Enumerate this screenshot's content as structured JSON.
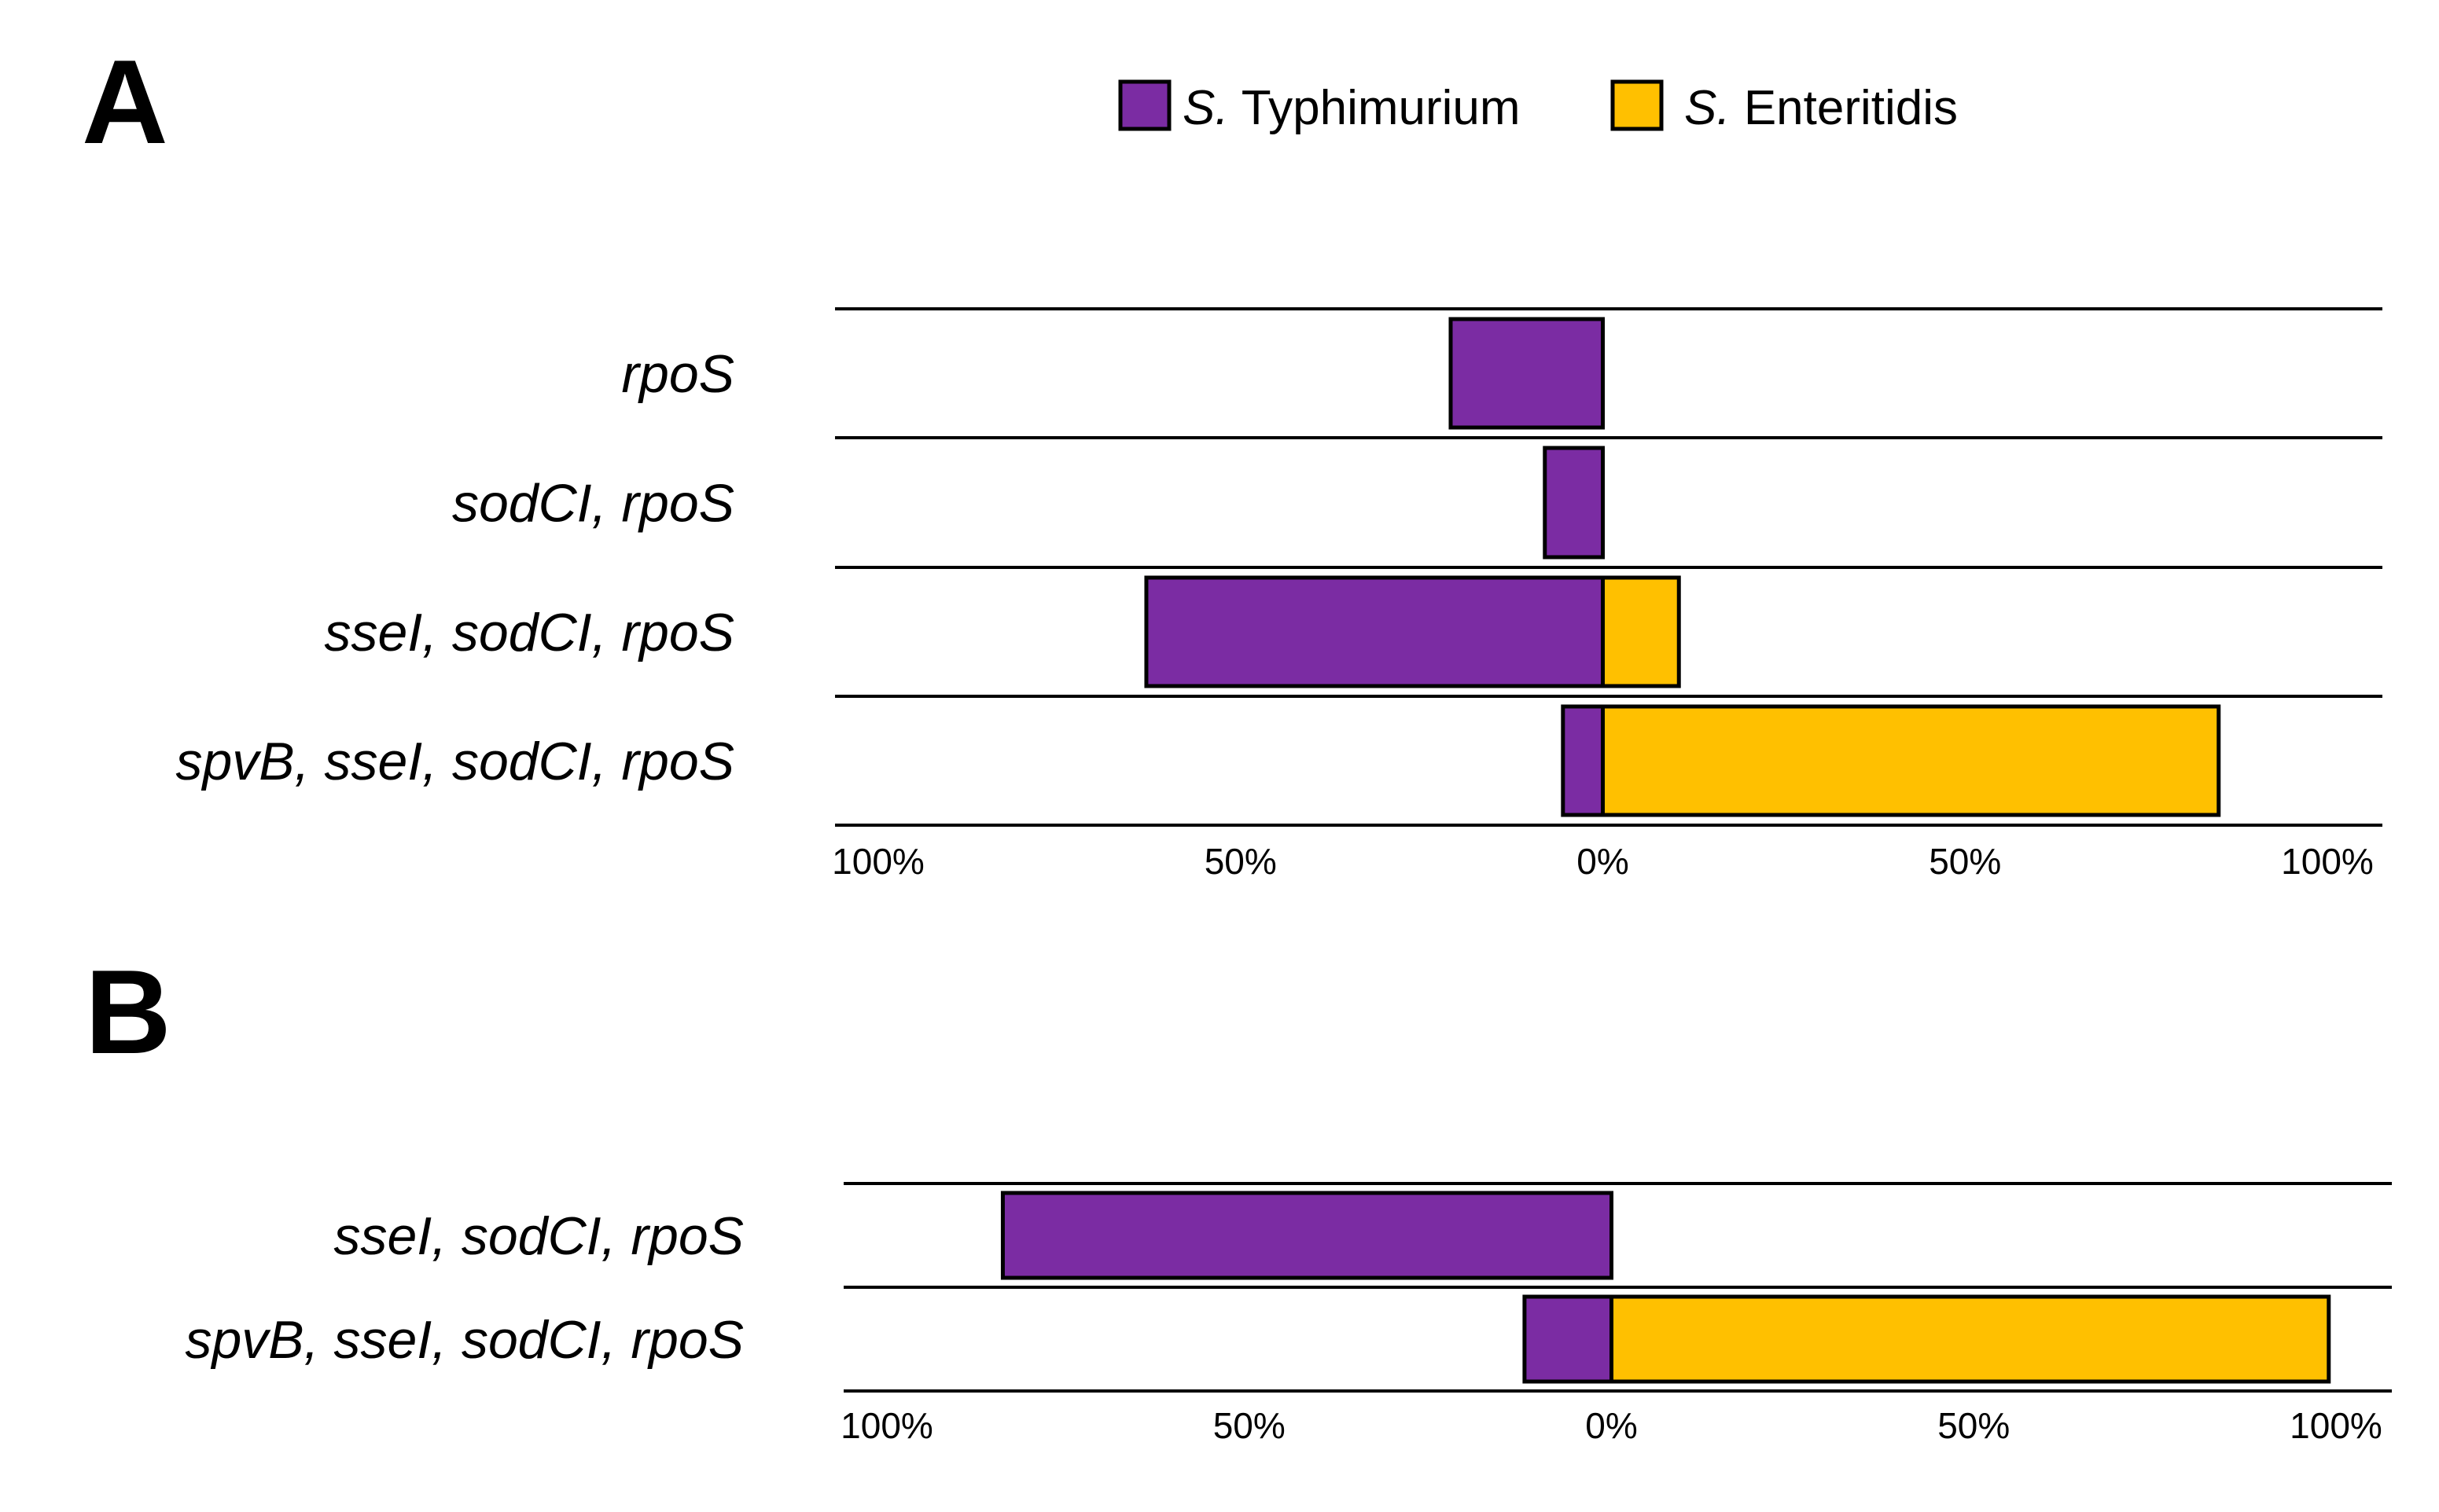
{
  "panels": {
    "a": {
      "label": "A"
    },
    "b": {
      "label": "B"
    }
  },
  "legend": {
    "items": [
      {
        "prefix": "S.",
        "name": " Typhimurium",
        "color": "#7B2CA3"
      },
      {
        "prefix": "S.",
        "name": " Enteritidis",
        "color": "#FFC000"
      }
    ]
  },
  "chart_data": [
    {
      "type": "bar",
      "orientation": "horizontal-diverging",
      "panel": "A",
      "categories": [
        "rpoS",
        "sodCI, rpoS",
        "sseI, sodCI, rpoS",
        "spvB, sseI, sodCI, rpoS"
      ],
      "series": [
        {
          "name": "S. Typhimurium",
          "direction": "left",
          "color": "#7B2CA3",
          "values": [
            21,
            8,
            63,
            5.5
          ]
        },
        {
          "name": "S. Enteritidis",
          "direction": "right",
          "color": "#FFC000",
          "values": [
            0,
            0,
            10.5,
            85
          ]
        }
      ],
      "xlim": [
        -100,
        100
      ],
      "ticks": [
        "100%",
        "50%",
        "0%",
        "50%",
        "100%"
      ],
      "xlabel": "",
      "ylabel": ""
    },
    {
      "type": "bar",
      "orientation": "horizontal-diverging",
      "panel": "B",
      "categories": [
        "sseI, sodCI, rpoS",
        "spvB, sseI, sodCI, rpoS"
      ],
      "series": [
        {
          "name": "S. Typhimurium",
          "direction": "left",
          "color": "#7B2CA3",
          "values": [
            84,
            12
          ]
        },
        {
          "name": "S. Enteritidis",
          "direction": "right",
          "color": "#FFC000",
          "values": [
            0,
            99
          ]
        }
      ],
      "xlim": [
        -100,
        100
      ],
      "ticks": [
        "100%",
        "50%",
        "0%",
        "50%",
        "100%"
      ],
      "xlabel": "",
      "ylabel": ""
    }
  ]
}
